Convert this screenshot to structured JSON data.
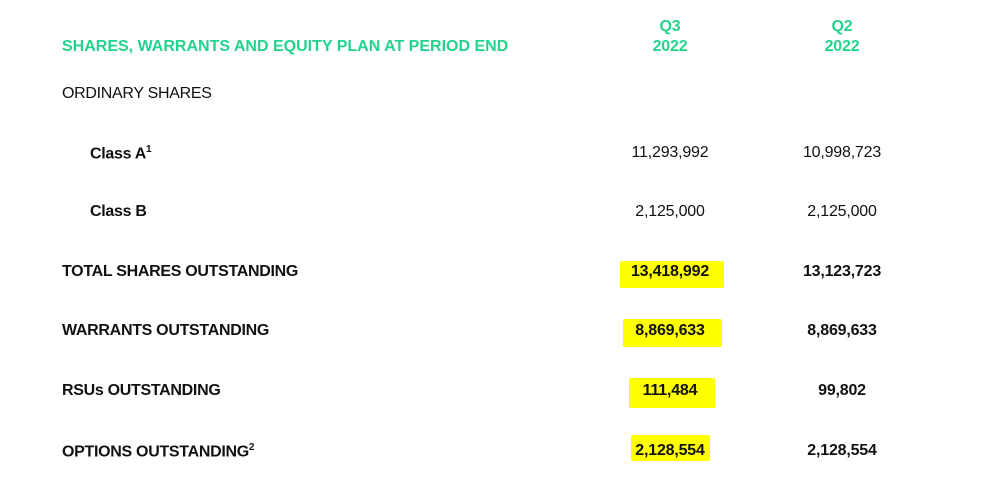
{
  "title": "SHARES, WARRANTS AND EQUITY PLAN AT PERIOD END",
  "columns": [
    {
      "quarter": "Q3",
      "year": "2022"
    },
    {
      "quarter": "Q2",
      "year": "2022"
    }
  ],
  "highlight_color": "#ffff00",
  "accent_color": "#22d38b",
  "section": "ORDINARY SHARES",
  "rows": [
    {
      "label": "Class A",
      "footnote": "1",
      "q3": "11,293,992",
      "q2": "10,998,723"
    },
    {
      "label": "Class B",
      "footnote": "",
      "q3": "2,125,000",
      "q2": "2,125,000"
    },
    {
      "label": "TOTAL SHARES OUTSTANDING",
      "footnote": "",
      "q3": "13,418,992",
      "q2": "13,123,723"
    },
    {
      "label": "WARRANTS OUTSTANDING",
      "footnote": "",
      "q3": "8,869,633",
      "q2": "8,869,633"
    },
    {
      "label": "RSUs OUTSTANDING",
      "footnote": "",
      "q3": "111,484",
      "q2": "99,802"
    },
    {
      "label": "OPTIONS OUTSTANDING",
      "footnote": "2",
      "q3": "2,128,554",
      "q2": "2,128,554"
    }
  ]
}
